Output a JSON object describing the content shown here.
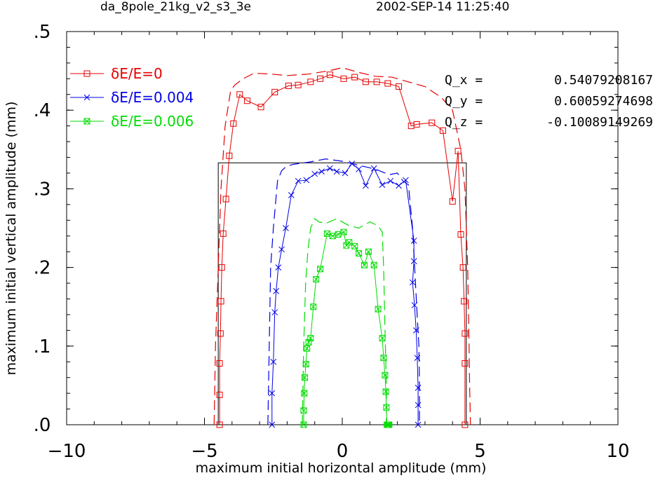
{
  "header": {
    "run_name": "da_8pole_21kg_v2_s3_3e",
    "timestamp": "2002-SEP-14  11:25:40"
  },
  "tunes": [
    {
      "label": "Q_x  =",
      "value": "0.54079208167"
    },
    {
      "label": "Q_y  =",
      "value": "0.60059274698"
    },
    {
      "label": "Q_z  =",
      "value": "-0.10089149269"
    }
  ],
  "colors": {
    "red": "#e60000",
    "blue": "#0000e6",
    "green": "#00dd00",
    "frame": "#000000"
  },
  "chart_data": {
    "type": "line",
    "title": "",
    "xlabel": "maximum initial horizontal amplitude (mm)",
    "ylabel": "maximum initial vertical amplitude (mm)",
    "xlim": [
      -10,
      10
    ],
    "ylim": [
      0,
      0.5
    ],
    "xticks": [
      -10,
      -5,
      0,
      5,
      10
    ],
    "xtick_labels": [
      "−10",
      "−5",
      "0",
      "5",
      "10"
    ],
    "yticks": [
      0,
      0.1,
      0.2,
      0.3,
      0.4,
      0.5
    ],
    "ytick_labels": [
      ".0",
      ".1",
      ".2",
      ".3",
      ".4",
      ".5"
    ],
    "grid": false,
    "legend_position": "top-left",
    "aperture_box": {
      "x": [
        -4.5,
        4.5
      ],
      "y": [
        0,
        0.333
      ]
    },
    "series": [
      {
        "name": "δE/E=0",
        "color": "#e60000",
        "marker": "square",
        "x": [
          -4.45,
          -4.45,
          -4.45,
          -4.42,
          -4.4,
          -4.37,
          -4.32,
          -4.22,
          -4.1,
          -3.95,
          -3.72,
          -3.45,
          -2.95,
          -2.45,
          -1.95,
          -1.6,
          -1.15,
          -0.8,
          -0.45,
          0.05,
          0.45,
          0.85,
          1.25,
          1.65,
          2.05,
          2.5,
          2.7,
          3.25,
          3.65,
          4.0,
          4.2,
          4.3,
          4.38,
          4.42,
          4.45,
          4.45,
          4.45
        ],
        "y": [
          0.0,
          0.038,
          0.078,
          0.116,
          0.157,
          0.2,
          0.243,
          0.287,
          0.342,
          0.383,
          0.42,
          0.412,
          0.404,
          0.423,
          0.431,
          0.432,
          0.436,
          0.44,
          0.445,
          0.44,
          0.442,
          0.436,
          0.436,
          0.434,
          0.43,
          0.38,
          0.382,
          0.384,
          0.374,
          0.284,
          0.348,
          0.242,
          0.2,
          0.157,
          0.116,
          0.078,
          0.0
        ]
      },
      {
        "name": "δE/E=0.004",
        "color": "#0000e6",
        "marker": "x",
        "x": [
          -2.55,
          -2.55,
          -2.5,
          -2.45,
          -2.4,
          -2.32,
          -2.2,
          -2.05,
          -1.85,
          -1.6,
          -1.3,
          -1.0,
          -0.75,
          -0.45,
          -0.2,
          0.1,
          0.35,
          0.6,
          0.85,
          1.15,
          1.45,
          1.75,
          2.05,
          2.3,
          2.6,
          2.6,
          2.55,
          2.62,
          2.68,
          2.72,
          2.75,
          2.75,
          2.75
        ],
        "y": [
          0.0,
          0.04,
          0.08,
          0.143,
          0.17,
          0.2,
          0.223,
          0.25,
          0.292,
          0.31,
          0.311,
          0.319,
          0.322,
          0.326,
          0.322,
          0.32,
          0.332,
          0.325,
          0.304,
          0.326,
          0.305,
          0.31,
          0.304,
          0.311,
          0.234,
          0.208,
          0.181,
          0.152,
          0.12,
          0.085,
          0.047,
          0.025,
          0.0
        ]
      },
      {
        "name": "δE/E=0.006",
        "color": "#00dd00",
        "marker": "boxx",
        "x": [
          -1.4,
          -1.4,
          -1.38,
          -1.36,
          -1.32,
          -1.28,
          -1.22,
          -1.15,
          -1.05,
          -0.95,
          -0.8,
          -0.55,
          -0.35,
          -0.15,
          0.05,
          0.15,
          0.25,
          0.45,
          0.6,
          0.8,
          0.95,
          1.15,
          1.3,
          1.45,
          1.5,
          1.55,
          1.58,
          1.6,
          1.62,
          1.65,
          1.68,
          1.7
        ],
        "y": [
          0.0,
          0.018,
          0.04,
          0.06,
          0.077,
          0.097,
          0.105,
          0.11,
          0.15,
          0.185,
          0.198,
          0.243,
          0.24,
          0.242,
          0.245,
          0.228,
          0.232,
          0.227,
          0.218,
          0.203,
          0.22,
          0.203,
          0.147,
          0.11,
          0.085,
          0.063,
          0.042,
          0.022,
          0.0,
          0.0,
          0.0,
          0.0
        ]
      }
    ],
    "dashed_boundaries": [
      {
        "color": "#e60000",
        "x": [
          -4.65,
          -4.6,
          -4.5,
          -4.4,
          -4.25,
          -4.05,
          -3.9,
          -3.6,
          -3.2,
          -2.6,
          -2.0,
          -1.2,
          -0.5,
          0.0,
          0.6,
          1.2,
          1.8,
          2.4,
          3.0,
          3.6,
          4.0,
          4.3,
          4.45,
          4.55,
          4.6,
          4.62,
          4.65
        ],
        "y": [
          0.0,
          0.1,
          0.2,
          0.3,
          0.38,
          0.425,
          0.432,
          0.44,
          0.447,
          0.446,
          0.444,
          0.446,
          0.45,
          0.454,
          0.448,
          0.443,
          0.442,
          0.436,
          0.43,
          0.416,
          0.4,
          0.35,
          0.3,
          0.2,
          0.1,
          0.05,
          0.0
        ]
      },
      {
        "color": "#0000e6",
        "x": [
          -2.7,
          -2.65,
          -2.6,
          -2.5,
          -2.35,
          -2.2,
          -2.05,
          -1.8,
          -1.2,
          -0.6,
          0.0,
          0.6,
          1.2,
          1.7,
          2.0,
          2.2,
          2.4,
          2.55,
          2.7,
          2.78,
          2.8,
          2.8
        ],
        "y": [
          0.0,
          0.1,
          0.2,
          0.25,
          0.31,
          0.323,
          0.328,
          0.331,
          0.334,
          0.338,
          0.335,
          0.33,
          0.325,
          0.318,
          0.32,
          0.31,
          0.305,
          0.25,
          0.15,
          0.1,
          0.05,
          0.0
        ]
      },
      {
        "color": "#00dd00",
        "x": [
          -1.45,
          -1.4,
          -1.33,
          -1.25,
          -1.15,
          -1.0,
          -0.85,
          -0.6,
          -0.2,
          0.2,
          0.6,
          1.0,
          1.3,
          1.45,
          1.5,
          1.55,
          1.6,
          1.6
        ],
        "y": [
          0.0,
          0.1,
          0.18,
          0.22,
          0.25,
          0.262,
          0.258,
          0.256,
          0.262,
          0.254,
          0.25,
          0.258,
          0.253,
          0.245,
          0.2,
          0.12,
          0.05,
          0.0
        ]
      }
    ]
  }
}
